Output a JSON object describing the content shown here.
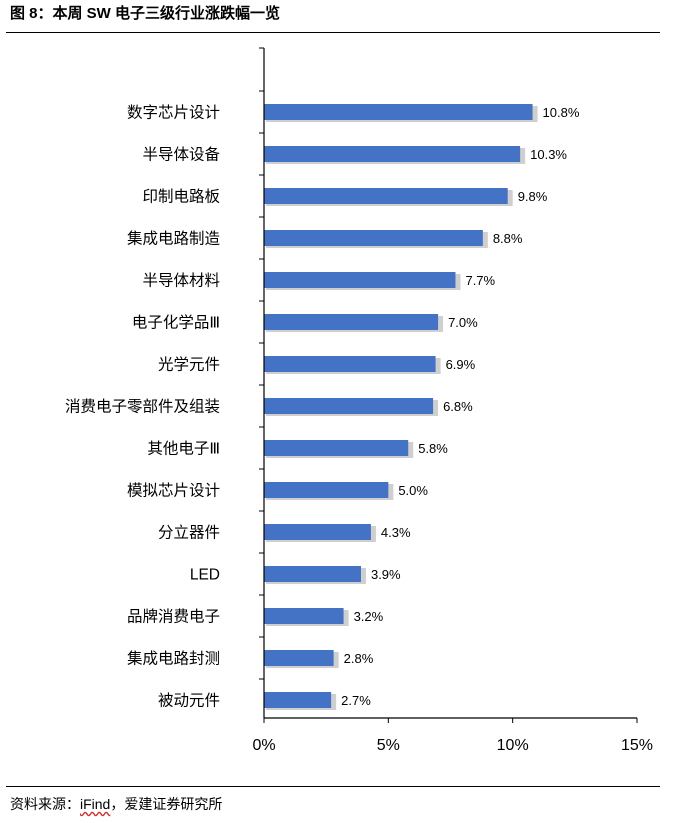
{
  "figure": {
    "title": "图 8：本周 SW 电子三级行业涨跌幅一览",
    "source_prefix": "资料来源：",
    "source_brand": "iFind",
    "source_suffix": "，爱建证券研究所"
  },
  "colors": {
    "bar": "#4472C4",
    "shadow": "#bfbfbf",
    "axis": "#000000"
  },
  "chart_data": {
    "type": "bar",
    "orientation": "horizontal",
    "categories": [
      "数字芯片设计",
      "半导体设备",
      "印制电路板",
      "集成电路制造",
      "半导体材料",
      "电子化学品Ⅲ",
      "光学元件",
      "消费电子零部件及组装",
      "其他电子Ⅲ",
      "模拟芯片设计",
      "分立器件",
      "LED",
      "品牌消费电子",
      "集成电路封测",
      "被动元件"
    ],
    "values": [
      10.8,
      10.3,
      9.8,
      8.8,
      7.7,
      7.0,
      6.9,
      6.8,
      5.8,
      5.0,
      4.3,
      3.9,
      3.2,
      2.8,
      2.7
    ],
    "value_labels": [
      "10.8%",
      "10.3%",
      "9.8%",
      "8.8%",
      "7.7%",
      "7.0%",
      "6.9%",
      "6.8%",
      "5.8%",
      "5.0%",
      "4.3%",
      "3.9%",
      "3.2%",
      "2.8%",
      "2.7%"
    ],
    "xlim": [
      0,
      15
    ],
    "xticks": [
      0,
      5,
      10,
      15
    ],
    "xtick_labels": [
      "0%",
      "5%",
      "10%",
      "15%"
    ],
    "title": "",
    "xlabel": "",
    "ylabel": "",
    "grid": false,
    "legend": "none"
  }
}
